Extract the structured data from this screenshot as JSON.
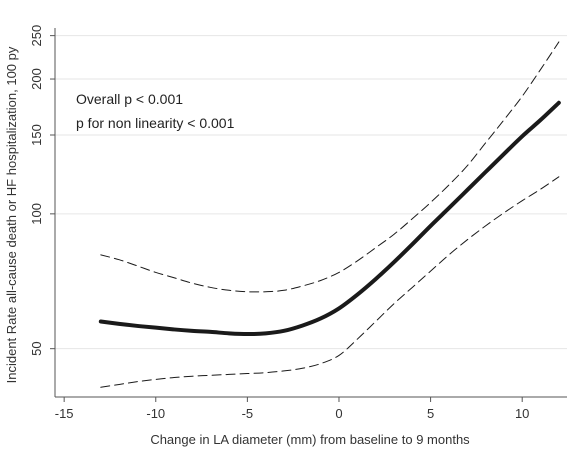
{
  "chart_data": {
    "type": "line",
    "xlabel": "Change in LA diameter (mm) from baseline to 9 months",
    "ylabel": "Incident Rate all-cause death or HF hospitalization, 100 py",
    "xlim": [
      -15.5,
      12.5
    ],
    "ylim": [
      39,
      260
    ],
    "y_scale": "log",
    "x_ticks": [
      -15,
      -10,
      -5,
      0,
      5,
      10
    ],
    "y_ticks": [
      50,
      100,
      150,
      200,
      250
    ],
    "grid": "horizontal",
    "annotations": [
      "Overall p < 0.001",
      "p for non linearity < 0.001"
    ],
    "series": [
      {
        "style": "solid-thick",
        "x": [
          -13,
          -12,
          -11,
          -10,
          -9,
          -8,
          -7,
          -6,
          -5,
          -4,
          -3,
          -2,
          -1,
          0,
          1,
          2,
          3,
          4,
          5,
          6,
          7,
          8,
          9,
          10,
          11,
          12
        ],
        "y": [
          57.5,
          56.8,
          56.2,
          55.7,
          55.2,
          54.8,
          54.5,
          54.1,
          53.9,
          54.1,
          54.8,
          56.3,
          58.4,
          61.5,
          66,
          71.5,
          78,
          85.5,
          94,
          103,
          113,
          124,
          136,
          149,
          162,
          177
        ]
      },
      {
        "style": "dashed",
        "x": [
          -13,
          -12,
          -11,
          -10,
          -9,
          -8,
          -7,
          -6,
          -5,
          -4,
          -3,
          -2,
          -1,
          0,
          1,
          2,
          3,
          4,
          5,
          6,
          7,
          8,
          9,
          10,
          11,
          12
        ],
        "y": [
          81,
          79,
          76.5,
          74,
          72,
          70,
          68.5,
          67.5,
          67,
          67,
          67.5,
          69,
          71,
          74,
          78.5,
          84,
          90,
          97.5,
          106,
          116,
          128,
          144,
          162,
          183,
          210,
          242
        ]
      },
      {
        "style": "dashed",
        "x": [
          -13,
          -12,
          -11,
          -10,
          -9,
          -8,
          -7,
          -6,
          -5,
          -4,
          -3,
          -2,
          -1,
          0,
          1,
          2,
          3,
          4,
          5,
          6,
          7,
          8,
          9,
          10,
          11,
          12
        ],
        "y": [
          41,
          41.6,
          42.2,
          42.7,
          43.1,
          43.4,
          43.6,
          43.8,
          44,
          44.2,
          44.6,
          45.2,
          46.3,
          48.3,
          52.5,
          57.5,
          63,
          68.5,
          74.5,
          81,
          87.5,
          94,
          100.5,
          107,
          113.5,
          121
        ]
      }
    ]
  }
}
